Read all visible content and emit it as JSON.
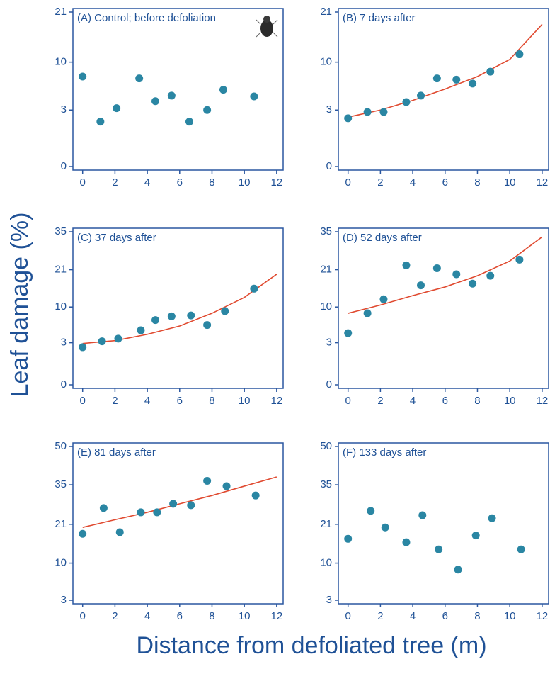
{
  "axis_labels": {
    "x": "Distance from defoliated tree (m)",
    "y": "Leaf damage (%)"
  },
  "chart_data": [
    {
      "type": "scatter",
      "title": "(A) Control; before defoliation",
      "yscale": "arcsine-sqrt",
      "color": "#2a86a3",
      "x": [
        0,
        1.1,
        2.1,
        3.5,
        4.5,
        5.5,
        6.6,
        7.7,
        8.7,
        10.6
      ],
      "values": [
        7.5,
        1.9,
        3.2,
        7.2,
        4.0,
        4.7,
        1.9,
        3.0,
        5.5,
        4.6
      ],
      "xlim": [
        -0.6,
        12.4
      ],
      "xticks": [
        0,
        2,
        4,
        6,
        8,
        10,
        12
      ],
      "ylim": [
        0,
        21
      ],
      "yticks": [
        0,
        3,
        10,
        21
      ]
    },
    {
      "type": "scatter",
      "title": "(B) 7 days after",
      "yscale": "arcsine-sqrt",
      "color": "#2a86a3",
      "fit_color": "#e04a30",
      "x": [
        0,
        1.2,
        2.2,
        3.6,
        4.5,
        5.5,
        6.7,
        7.7,
        8.8,
        10.6
      ],
      "values": [
        2.2,
        2.8,
        2.8,
        3.9,
        4.7,
        7.2,
        7.0,
        6.4,
        8.3,
        11.5
      ],
      "fit": {
        "x": [
          0,
          2,
          4,
          6,
          8,
          10,
          12
        ],
        "values": [
          2.3,
          3.0,
          4.1,
          5.6,
          7.5,
          10.5,
          18
        ]
      },
      "xlim": [
        -0.6,
        12.4
      ],
      "xticks": [
        0,
        2,
        4,
        6,
        8,
        10,
        12
      ],
      "ylim": [
        0,
        21
      ],
      "yticks": [
        0,
        3,
        10,
        21
      ]
    },
    {
      "type": "scatter",
      "title": "(C) 37 days after",
      "yscale": "arcsine-sqrt",
      "color": "#2a86a3",
      "fit_color": "#e04a30",
      "x": [
        0,
        1.2,
        2.2,
        3.6,
        4.5,
        5.5,
        6.7,
        7.7,
        8.8,
        10.6
      ],
      "values": [
        2.4,
        3.2,
        3.6,
        5.0,
        7.0,
        7.8,
        8.0,
        6.0,
        9.0,
        15.0
      ],
      "fit": {
        "x": [
          0,
          2,
          4,
          6,
          8,
          10,
          12
        ],
        "values": [
          2.9,
          3.3,
          4.3,
          5.8,
          8.5,
          12.5,
          19.5
        ]
      },
      "xlim": [
        -0.6,
        12.4
      ],
      "xticks": [
        0,
        2,
        4,
        6,
        8,
        10,
        12
      ],
      "ylim": [
        0,
        35
      ],
      "yticks": [
        0,
        3,
        10,
        21,
        35
      ]
    },
    {
      "type": "scatter",
      "title": "(D) 52 days after",
      "yscale": "arcsine-sqrt",
      "color": "#2a86a3",
      "fit_color": "#e04a30",
      "x": [
        0,
        1.2,
        2.2,
        3.6,
        4.5,
        5.5,
        6.7,
        7.7,
        8.8,
        10.6
      ],
      "values": [
        4.5,
        8.5,
        12.0,
        22.5,
        16.0,
        21.5,
        19.5,
        16.5,
        19.0,
        24.5
      ],
      "fit": {
        "x": [
          0,
          2,
          4,
          6,
          8,
          10,
          12
        ],
        "values": [
          8.5,
          10.5,
          13,
          15.5,
          19,
          24,
          33
        ]
      },
      "xlim": [
        -0.6,
        12.4
      ],
      "xticks": [
        0,
        2,
        4,
        6,
        8,
        10,
        12
      ],
      "ylim": [
        0,
        35
      ],
      "yticks": [
        0,
        3,
        10,
        21,
        35
      ]
    },
    {
      "type": "scatter",
      "title": "(E) 81 days after",
      "yscale": "arcsine-sqrt",
      "color": "#2a86a3",
      "fit_color": "#e04a30",
      "x": [
        0,
        1.3,
        2.3,
        3.6,
        4.6,
        5.6,
        6.7,
        7.7,
        8.9,
        10.7
      ],
      "values": [
        18,
        26.5,
        18.5,
        25,
        25,
        28,
        27.5,
        36.5,
        34.5,
        31
      ],
      "fit": {
        "x": [
          0,
          2,
          4,
          6,
          8,
          10,
          12
        ],
        "values": [
          20,
          22.5,
          25,
          28,
          31,
          34.5,
          38
        ]
      },
      "xlim": [
        -0.6,
        12.4
      ],
      "xticks": [
        0,
        2,
        4,
        6,
        8,
        10,
        12
      ],
      "ylim": [
        3,
        50
      ],
      "yticks": [
        3,
        10,
        21,
        35,
        50
      ]
    },
    {
      "type": "scatter",
      "title": "(F) 133 days after",
      "yscale": "arcsine-sqrt",
      "color": "#2a86a3",
      "x": [
        0,
        1.4,
        2.3,
        3.6,
        4.6,
        5.6,
        6.8,
        7.9,
        8.9,
        10.7
      ],
      "values": [
        16.5,
        25.5,
        20,
        15.5,
        24,
        13.5,
        8.5,
        17.5,
        23,
        13.5
      ],
      "xlim": [
        -0.6,
        12.4
      ],
      "xticks": [
        0,
        2,
        4,
        6,
        8,
        10,
        12
      ],
      "ylim": [
        3,
        50
      ],
      "yticks": [
        3,
        10,
        21,
        35,
        50
      ]
    }
  ]
}
